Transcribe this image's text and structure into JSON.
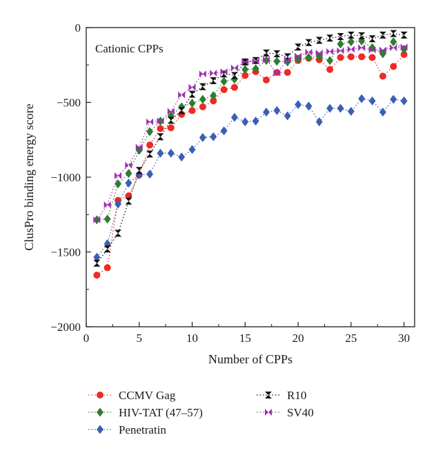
{
  "chart_data": {
    "type": "scatter",
    "annotation": "Cationic CPPs",
    "xlabel": "Number of CPPs",
    "ylabel": "ClusPro binding energy score",
    "xlim": [
      0,
      31
    ],
    "ylim": [
      -2000,
      0
    ],
    "xticks": [
      0,
      5,
      10,
      15,
      20,
      25,
      30
    ],
    "yticks": [
      0,
      -500,
      -1000,
      -1500,
      -2000
    ],
    "grid": false,
    "legend_position": "bottom",
    "series": [
      {
        "name": "CCMV Gag",
        "color": "#ee2a24",
        "marker": "circle",
        "x": [
          1,
          2,
          3,
          4,
          5,
          6,
          7,
          8,
          9,
          10,
          11,
          12,
          13,
          14,
          15,
          16,
          17,
          18,
          19,
          20,
          21,
          22,
          23,
          24,
          25,
          26,
          27,
          28,
          29,
          30
        ],
        "y": [
          -1655,
          -1605,
          -1155,
          -1125,
          -985,
          -785,
          -675,
          -670,
          -580,
          -555,
          -530,
          -490,
          -415,
          -400,
          -320,
          -295,
          -350,
          -300,
          -300,
          -220,
          -205,
          -215,
          -280,
          -200,
          -195,
          -195,
          -200,
          -325,
          -260,
          -180
        ]
      },
      {
        "name": "HIV-TAT (47–57)",
        "color": "#2e7d32",
        "marker": "diamond",
        "x": [
          1,
          2,
          3,
          4,
          5,
          6,
          7,
          8,
          9,
          10,
          11,
          12,
          13,
          14,
          15,
          16,
          17,
          18,
          19,
          20,
          21,
          22,
          23,
          24,
          25,
          26,
          27,
          28,
          29,
          30
        ],
        "y": [
          -1285,
          -1280,
          -1045,
          -975,
          -820,
          -695,
          -625,
          -590,
          -530,
          -505,
          -480,
          -455,
          -360,
          -345,
          -280,
          -275,
          -220,
          -225,
          -230,
          -210,
          -200,
          -195,
          -220,
          -110,
          -95,
          -90,
          -135,
          -175,
          -95,
          -145
        ]
      },
      {
        "name": "Penetratin",
        "color": "#3a5fb5",
        "marker": "diamond",
        "x": [
          1,
          2,
          3,
          4,
          5,
          6,
          7,
          8,
          9,
          10,
          11,
          12,
          13,
          14,
          15,
          16,
          17,
          18,
          19,
          20,
          21,
          22,
          23,
          24,
          25,
          26,
          27,
          28,
          29,
          30
        ],
        "y": [
          -1535,
          -1445,
          -1180,
          -1040,
          -985,
          -980,
          -840,
          -840,
          -865,
          -815,
          -735,
          -730,
          -690,
          -600,
          -630,
          -625,
          -565,
          -555,
          -590,
          -515,
          -525,
          -630,
          -540,
          -540,
          -560,
          -475,
          -490,
          -565,
          -480,
          -490
        ]
      },
      {
        "name": "R10",
        "color": "#111111",
        "marker": "hourglass",
        "x": [
          1,
          2,
          3,
          4,
          5,
          6,
          7,
          8,
          9,
          10,
          11,
          12,
          13,
          14,
          15,
          16,
          17,
          18,
          19,
          20,
          21,
          22,
          23,
          24,
          25,
          26,
          27,
          28,
          29,
          30
        ],
        "y": [
          -1575,
          -1480,
          -1375,
          -1160,
          -955,
          -845,
          -730,
          -620,
          -555,
          -445,
          -395,
          -355,
          -310,
          -320,
          -230,
          -220,
          -170,
          -175,
          -195,
          -130,
          -100,
          -85,
          -70,
          -60,
          -50,
          -55,
          -75,
          -50,
          -40,
          -50
        ]
      },
      {
        "name": "SV40",
        "color": "#9c2fae",
        "marker": "bowtie",
        "x": [
          1,
          2,
          3,
          4,
          5,
          6,
          7,
          8,
          9,
          10,
          11,
          12,
          13,
          14,
          15,
          16,
          17,
          18,
          19,
          20,
          21,
          22,
          23,
          24,
          25,
          26,
          27,
          28,
          29,
          30
        ],
        "y": [
          -1285,
          -1185,
          -990,
          -920,
          -800,
          -630,
          -625,
          -560,
          -450,
          -400,
          -310,
          -305,
          -295,
          -270,
          -230,
          -225,
          -215,
          -305,
          -215,
          -190,
          -165,
          -170,
          -160,
          -155,
          -145,
          -135,
          -150,
          -150,
          -135,
          -130
        ]
      }
    ]
  }
}
